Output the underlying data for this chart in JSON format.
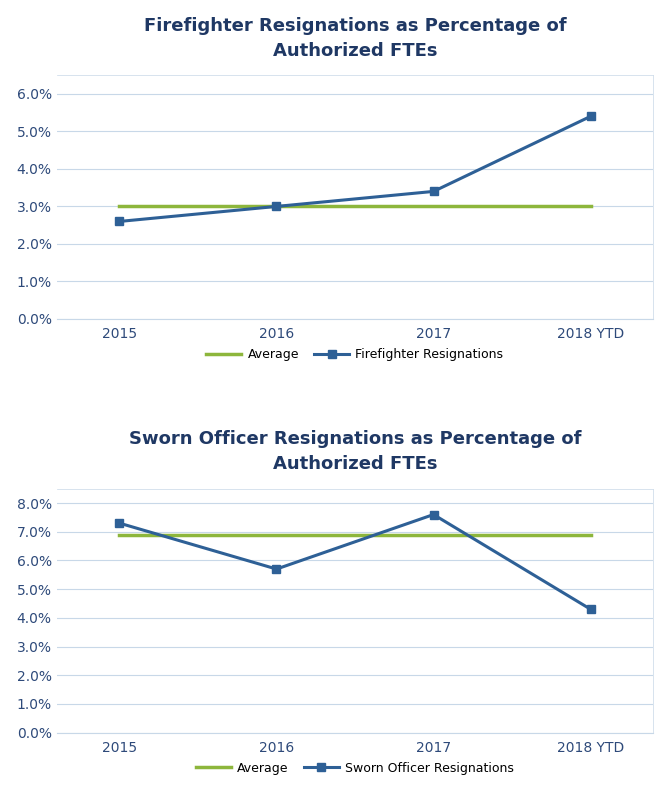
{
  "chart1": {
    "title": "Firefighter Resignations as Percentage of\nAuthorized FTEs",
    "categories": [
      "2015",
      "2016",
      "2017",
      "2018 YTD"
    ],
    "resignations": [
      0.026,
      0.03,
      0.034,
      0.054
    ],
    "average": 0.03,
    "ylim": [
      0.0,
      0.065
    ],
    "yticks": [
      0.0,
      0.01,
      0.02,
      0.03,
      0.04,
      0.05,
      0.06
    ],
    "ytick_labels": [
      "0.0%",
      "1.0%",
      "2.0%",
      "3.0%",
      "4.0%",
      "5.0%",
      "6.0%"
    ],
    "line_color": "#2E6096",
    "avg_color": "#8DB63C",
    "legend_labels": [
      "Firefighter Resignations",
      "Average"
    ]
  },
  "chart2": {
    "title": "Sworn Officer Resignations as Percentage of\nAuthorized FTEs",
    "categories": [
      "2015",
      "2016",
      "2017",
      "2018 YTD"
    ],
    "resignations": [
      0.073,
      0.057,
      0.076,
      0.043
    ],
    "average": 0.069,
    "ylim": [
      0.0,
      0.085
    ],
    "yticks": [
      0.0,
      0.01,
      0.02,
      0.03,
      0.04,
      0.05,
      0.06,
      0.07,
      0.08
    ],
    "ytick_labels": [
      "0.0%",
      "1.0%",
      "2.0%",
      "3.0%",
      "4.0%",
      "5.0%",
      "6.0%",
      "7.0%",
      "8.0%"
    ],
    "line_color": "#2E6096",
    "avg_color": "#8DB63C",
    "legend_labels": [
      "Sworn Officer Resignations",
      "Average"
    ]
  },
  "bg_color": "#FFFFFF",
  "plot_bg_color": "#FFFFFF",
  "grid_color": "#C8D8E8",
  "panel_border_color": "#C8D8E8",
  "title_color": "#1F3864",
  "tick_color": "#2E4A7A",
  "title_fontsize": 13,
  "tick_fontsize": 10,
  "legend_fontsize": 9
}
